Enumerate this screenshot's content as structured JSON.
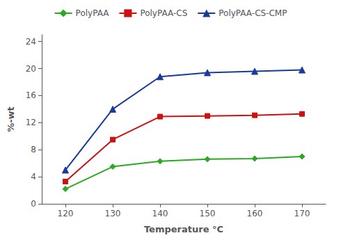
{
  "chart_data": {
    "type": "line",
    "x": [
      120,
      130,
      140,
      150,
      160,
      170
    ],
    "series": [
      {
        "name": "PolyPAA",
        "color": "#2aaa22",
        "marker": "diamond",
        "values": [
          2.2,
          5.5,
          6.3,
          6.6,
          6.7,
          7.0
        ]
      },
      {
        "name": "PolyPAA-CS",
        "color": "#cc1111",
        "marker": "square",
        "values": [
          3.3,
          9.5,
          12.9,
          13.0,
          13.1,
          13.3
        ]
      },
      {
        "name": "PolyPAA-CS-CMP",
        "color": "#1a3a99",
        "marker": "triangle",
        "values": [
          5.0,
          14.0,
          18.8,
          19.4,
          19.6,
          19.8
        ]
      }
    ],
    "xlabel": "Temperature °C",
    "ylabel": "%-wt",
    "xlim": [
      115,
      175
    ],
    "ylim": [
      0,
      25
    ],
    "xticks": [
      120,
      130,
      140,
      150,
      160,
      170
    ],
    "yticks": [
      0,
      4,
      8,
      12,
      16,
      20,
      24
    ],
    "grid": false,
    "legend": "top"
  }
}
